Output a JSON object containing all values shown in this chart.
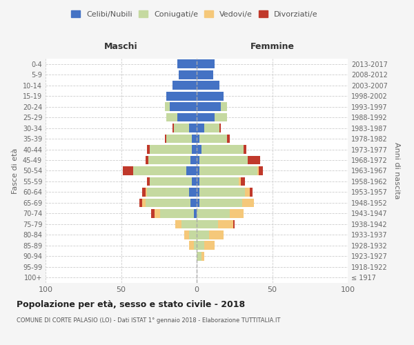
{
  "age_groups": [
    "100+",
    "95-99",
    "90-94",
    "85-89",
    "80-84",
    "75-79",
    "70-74",
    "65-69",
    "60-64",
    "55-59",
    "50-54",
    "45-49",
    "40-44",
    "35-39",
    "30-34",
    "25-29",
    "20-24",
    "15-19",
    "10-14",
    "5-9",
    "0-4"
  ],
  "birth_years": [
    "≤ 1917",
    "1918-1922",
    "1923-1927",
    "1928-1932",
    "1933-1937",
    "1938-1942",
    "1943-1947",
    "1948-1952",
    "1953-1957",
    "1958-1962",
    "1963-1967",
    "1968-1972",
    "1973-1977",
    "1978-1982",
    "1983-1987",
    "1988-1992",
    "1993-1997",
    "1998-2002",
    "2003-2007",
    "2008-2012",
    "2013-2017"
  ],
  "colors": {
    "celibi": "#4472C4",
    "coniugati": "#C5D9A0",
    "vedovi": "#F5C87A",
    "divorziati": "#C0392B"
  },
  "maschi": {
    "celibi": [
      0,
      0,
      0,
      0,
      0,
      0,
      2,
      4,
      5,
      3,
      7,
      4,
      3,
      3,
      5,
      13,
      18,
      20,
      16,
      12,
      13
    ],
    "coniugati": [
      0,
      0,
      0,
      2,
      5,
      10,
      22,
      30,
      28,
      28,
      35,
      28,
      28,
      17,
      10,
      7,
      3,
      0,
      0,
      0,
      0
    ],
    "vedovi": [
      0,
      0,
      0,
      3,
      3,
      4,
      4,
      2,
      1,
      0,
      0,
      0,
      0,
      0,
      0,
      0,
      0,
      0,
      0,
      0,
      0
    ],
    "divorziati": [
      0,
      0,
      0,
      0,
      0,
      0,
      2,
      2,
      2,
      2,
      7,
      2,
      2,
      1,
      1,
      0,
      0,
      0,
      0,
      0,
      0
    ]
  },
  "femmine": {
    "nubili": [
      0,
      0,
      0,
      0,
      0,
      0,
      0,
      2,
      2,
      2,
      2,
      2,
      3,
      2,
      5,
      12,
      16,
      18,
      15,
      11,
      12
    ],
    "coniugate": [
      0,
      0,
      3,
      5,
      8,
      14,
      22,
      28,
      30,
      26,
      38,
      32,
      28,
      18,
      10,
      8,
      4,
      0,
      0,
      0,
      0
    ],
    "vedove": [
      0,
      0,
      2,
      7,
      10,
      10,
      9,
      8,
      3,
      1,
      1,
      0,
      0,
      0,
      0,
      0,
      0,
      0,
      0,
      0,
      0
    ],
    "divorziate": [
      0,
      0,
      0,
      0,
      0,
      1,
      0,
      0,
      2,
      3,
      3,
      8,
      2,
      2,
      1,
      0,
      0,
      0,
      0,
      0,
      0
    ]
  },
  "xlim": 100,
  "title": "Popolazione per età, sesso e stato civile - 2018",
  "subtitle": "COMUNE DI CORTE PALASIO (LO) - Dati ISTAT 1° gennaio 2018 - Elaborazione TUTTITALIA.IT",
  "ylabel_left": "Fasce di età",
  "ylabel_right": "Anni di nascita",
  "xlabel_left": "Maschi",
  "xlabel_right": "Femmine",
  "bg_color": "#f5f5f5",
  "plot_bg": "#ffffff",
  "grid_color": "#cccccc"
}
